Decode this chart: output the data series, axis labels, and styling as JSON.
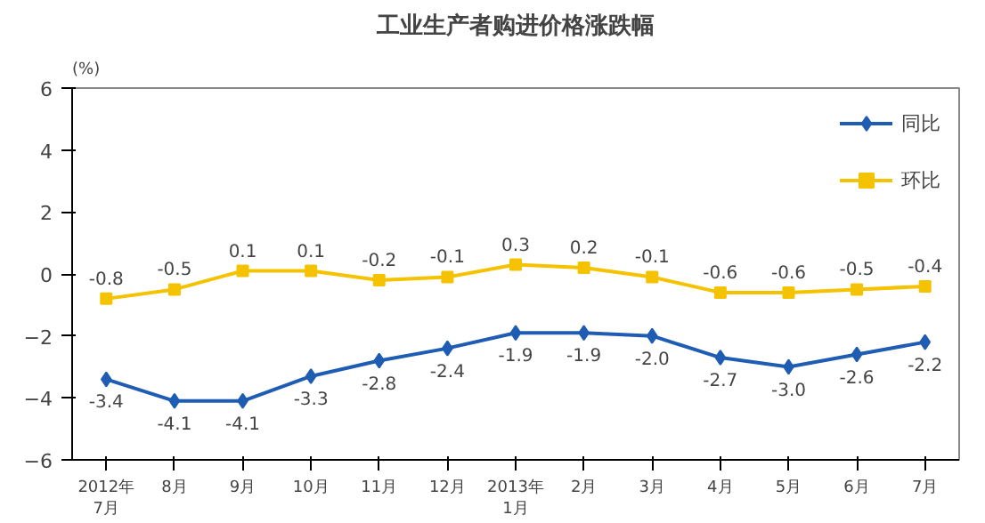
{
  "chart_data": {
    "type": "line",
    "title": "工业生产者购进价格涨跌幅",
    "ylabel": "(%)",
    "categories": [
      "2012年\n7月",
      "8月",
      "9月",
      "10月",
      "11月",
      "12月",
      "2013年\n1月",
      "2月",
      "3月",
      "4月",
      "5月",
      "6月",
      "7月"
    ],
    "series": [
      {
        "name": "同比",
        "color": "#1f5cb4",
        "marker": "diamond",
        "values": [
          -3.4,
          -4.1,
          -4.1,
          -3.3,
          -2.8,
          -2.4,
          -1.9,
          -1.9,
          -2.0,
          -2.7,
          -3.0,
          -2.6,
          -2.2
        ],
        "value_labels": [
          "-3.4",
          "-4.1",
          "-4.1",
          "-3.3",
          "-2.8",
          "-2.4",
          "-1.9",
          "-1.9",
          "-2.0",
          "-2.7",
          "-3.0",
          "-2.6",
          "-2.2"
        ]
      },
      {
        "name": "环比",
        "color": "#f5c200",
        "marker": "square",
        "values": [
          -0.8,
          -0.5,
          0.1,
          0.1,
          -0.2,
          -0.1,
          0.3,
          0.2,
          -0.1,
          -0.6,
          -0.6,
          -0.5,
          -0.4
        ],
        "value_labels": [
          "-0.8",
          "-0.5",
          "0.1",
          "0.1",
          "-0.2",
          "-0.1",
          "0.3",
          "0.2",
          "-0.1",
          "-0.6",
          "-0.6",
          "-0.5",
          "-0.4"
        ]
      }
    ],
    "ylim": [
      -6,
      6
    ],
    "yticks": [
      -6,
      -4,
      -2,
      0,
      2,
      4,
      6
    ],
    "grid": false,
    "legend": "top right",
    "line_style": "solid"
  }
}
